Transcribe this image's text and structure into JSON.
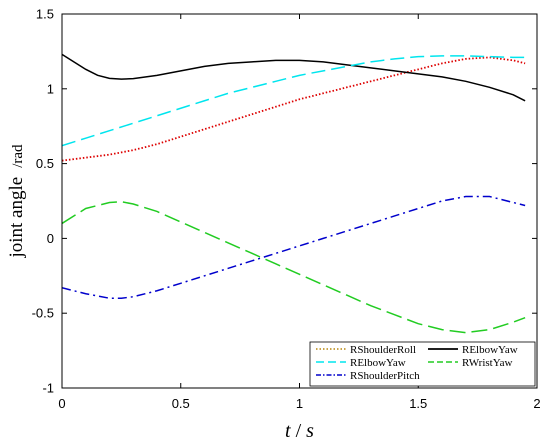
{
  "chart_data": {
    "type": "line",
    "title": "",
    "xlabel": "t/s",
    "ylabel": "joint angle /rad",
    "ylabel_main": "joint angle",
    "ylabel_unit": "/rad",
    "xlabel_t": "t",
    "xlabel_sep": "/",
    "xlabel_s": "s",
    "xlim": [
      0,
      2
    ],
    "ylim": [
      -1,
      1.5
    ],
    "xticks": [
      0,
      0.5,
      1,
      1.5,
      2
    ],
    "xtick_labels": [
      "0",
      "0.5",
      "1",
      "1.5",
      "2"
    ],
    "yticks": [
      -1,
      -0.5,
      0,
      0.5,
      1,
      1.5
    ],
    "ytick_labels": [
      "-1",
      "-0.5",
      "0",
      "0.5",
      "1",
      "1.5"
    ],
    "grid": false,
    "legend_position": "bottom-right",
    "series": [
      {
        "name": "RShoulderRoll",
        "color": "#dd0000",
        "dash": "dotted",
        "x": [
          0,
          0.1,
          0.2,
          0.3,
          0.4,
          0.5,
          0.6,
          0.7,
          0.8,
          0.9,
          1.0,
          1.1,
          1.2,
          1.3,
          1.4,
          1.5,
          1.6,
          1.7,
          1.8,
          1.9,
          1.95
        ],
        "y": [
          0.52,
          0.54,
          0.56,
          0.59,
          0.63,
          0.68,
          0.73,
          0.78,
          0.83,
          0.88,
          0.93,
          0.97,
          1.01,
          1.05,
          1.09,
          1.13,
          1.17,
          1.2,
          1.21,
          1.19,
          1.17
        ]
      },
      {
        "name": "RElbowYaw",
        "color": "#000000",
        "dash": "solid",
        "x": [
          0,
          0.05,
          0.1,
          0.15,
          0.2,
          0.25,
          0.3,
          0.4,
          0.5,
          0.6,
          0.7,
          0.8,
          0.9,
          1.0,
          1.1,
          1.2,
          1.3,
          1.4,
          1.5,
          1.6,
          1.7,
          1.8,
          1.9,
          1.95
        ],
        "y": [
          1.23,
          1.18,
          1.13,
          1.09,
          1.07,
          1.065,
          1.068,
          1.09,
          1.12,
          1.15,
          1.17,
          1.18,
          1.19,
          1.19,
          1.18,
          1.16,
          1.14,
          1.12,
          1.1,
          1.08,
          1.05,
          1.01,
          0.96,
          0.92
        ]
      },
      {
        "name": "RElbowYaw",
        "color": "#00e5ee",
        "dash": "dashed",
        "x": [
          0,
          0.1,
          0.2,
          0.3,
          0.4,
          0.5,
          0.6,
          0.7,
          0.8,
          0.9,
          1.0,
          1.1,
          1.2,
          1.3,
          1.4,
          1.5,
          1.6,
          1.7,
          1.8,
          1.9,
          1.95
        ],
        "y": [
          0.62,
          0.67,
          0.72,
          0.77,
          0.82,
          0.87,
          0.92,
          0.97,
          1.01,
          1.05,
          1.09,
          1.12,
          1.15,
          1.18,
          1.2,
          1.215,
          1.22,
          1.22,
          1.215,
          1.21,
          1.21
        ]
      },
      {
        "name": "RWristYaw",
        "color": "#22cc22",
        "dash": "longdash",
        "x": [
          0,
          0.1,
          0.2,
          0.25,
          0.3,
          0.4,
          0.5,
          0.6,
          0.7,
          0.8,
          0.9,
          1.0,
          1.1,
          1.2,
          1.3,
          1.4,
          1.5,
          1.6,
          1.7,
          1.8,
          1.9,
          1.95
        ],
        "y": [
          0.1,
          0.2,
          0.24,
          0.245,
          0.23,
          0.18,
          0.11,
          0.04,
          -0.03,
          -0.1,
          -0.17,
          -0.24,
          -0.31,
          -0.38,
          -0.45,
          -0.51,
          -0.57,
          -0.61,
          -0.63,
          -0.61,
          -0.56,
          -0.53
        ]
      },
      {
        "name": "RShoulderPitch",
        "color": "#0000cc",
        "dash": "dashdot",
        "x": [
          0,
          0.1,
          0.2,
          0.25,
          0.3,
          0.4,
          0.5,
          0.6,
          0.7,
          0.8,
          0.9,
          1.0,
          1.1,
          1.2,
          1.3,
          1.4,
          1.5,
          1.6,
          1.7,
          1.8,
          1.9,
          1.95
        ],
        "y": [
          -0.33,
          -0.37,
          -0.4,
          -0.4,
          -0.39,
          -0.35,
          -0.3,
          -0.25,
          -0.2,
          -0.15,
          -0.1,
          -0.05,
          0.0,
          0.05,
          0.1,
          0.15,
          0.2,
          0.25,
          0.28,
          0.28,
          0.24,
          0.22
        ]
      }
    ]
  }
}
